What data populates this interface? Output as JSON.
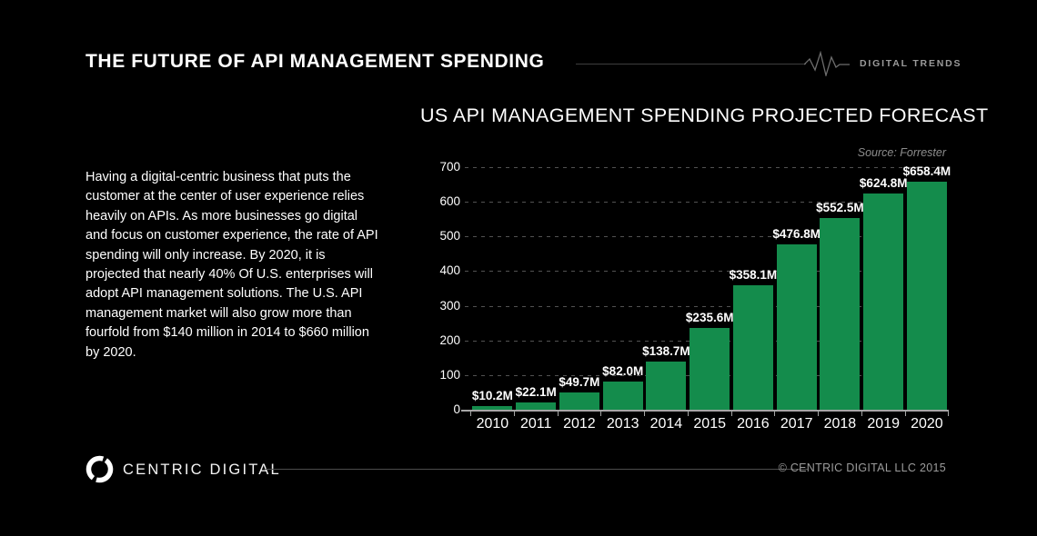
{
  "page": {
    "background_color": "#000000",
    "accent_green": "#148C4C"
  },
  "header": {
    "title": "THE FUTURE OF API MANAGEMENT SPENDING",
    "brand_label": "DIGITAL TRENDS",
    "pulse_icon": "heartbeat-pulse-icon",
    "rule_color": "#3e3e3e"
  },
  "intro": {
    "text": "Having a digital-centric business that puts the customer at the center of user experience relies heavily on APIs. As more businesses go digital and focus on customer experience, the rate of API spending will only increase. By 2020, it is projected that nearly 40% Of U.S. enterprises will adopt API management solutions. The U.S. API management market will also grow more than fourfold from $140 million in 2014 to $660 million by 2020."
  },
  "chart_data": {
    "type": "bar",
    "title": "US API MANAGEMENT SPENDING PROJECTED FORECAST",
    "source": "Source: Forrester",
    "categories": [
      "2010",
      "2011",
      "2012",
      "2013",
      "2014",
      "2015",
      "2016",
      "2017",
      "2018",
      "2019",
      "2020"
    ],
    "values": [
      10.2,
      22.1,
      49.7,
      82.0,
      138.7,
      235.6,
      358.1,
      476.8,
      552.5,
      624.8,
      658.4
    ],
    "value_labels": [
      "$10.2M",
      "$22.1M",
      "$49.7M",
      "$82.0M",
      "$138.7M",
      "$235.6M",
      "$358.1M",
      "$476.8M",
      "$552.5M",
      "$624.8M",
      "$658.4M"
    ],
    "unit": "USD millions",
    "ylim": [
      0,
      700
    ],
    "yticks": [
      0,
      100,
      200,
      300,
      400,
      500,
      600,
      700
    ],
    "grid": "dashed-horizontal",
    "legend": "none",
    "bar_color": "#148C4C",
    "label_color": "#ffffff"
  },
  "footer": {
    "logo_icon": "centric-digital-ring-icon",
    "brand": "CENTRIC DIGITAL",
    "copyright": "© CENTRIC DIGITAL LLC 2015"
  }
}
